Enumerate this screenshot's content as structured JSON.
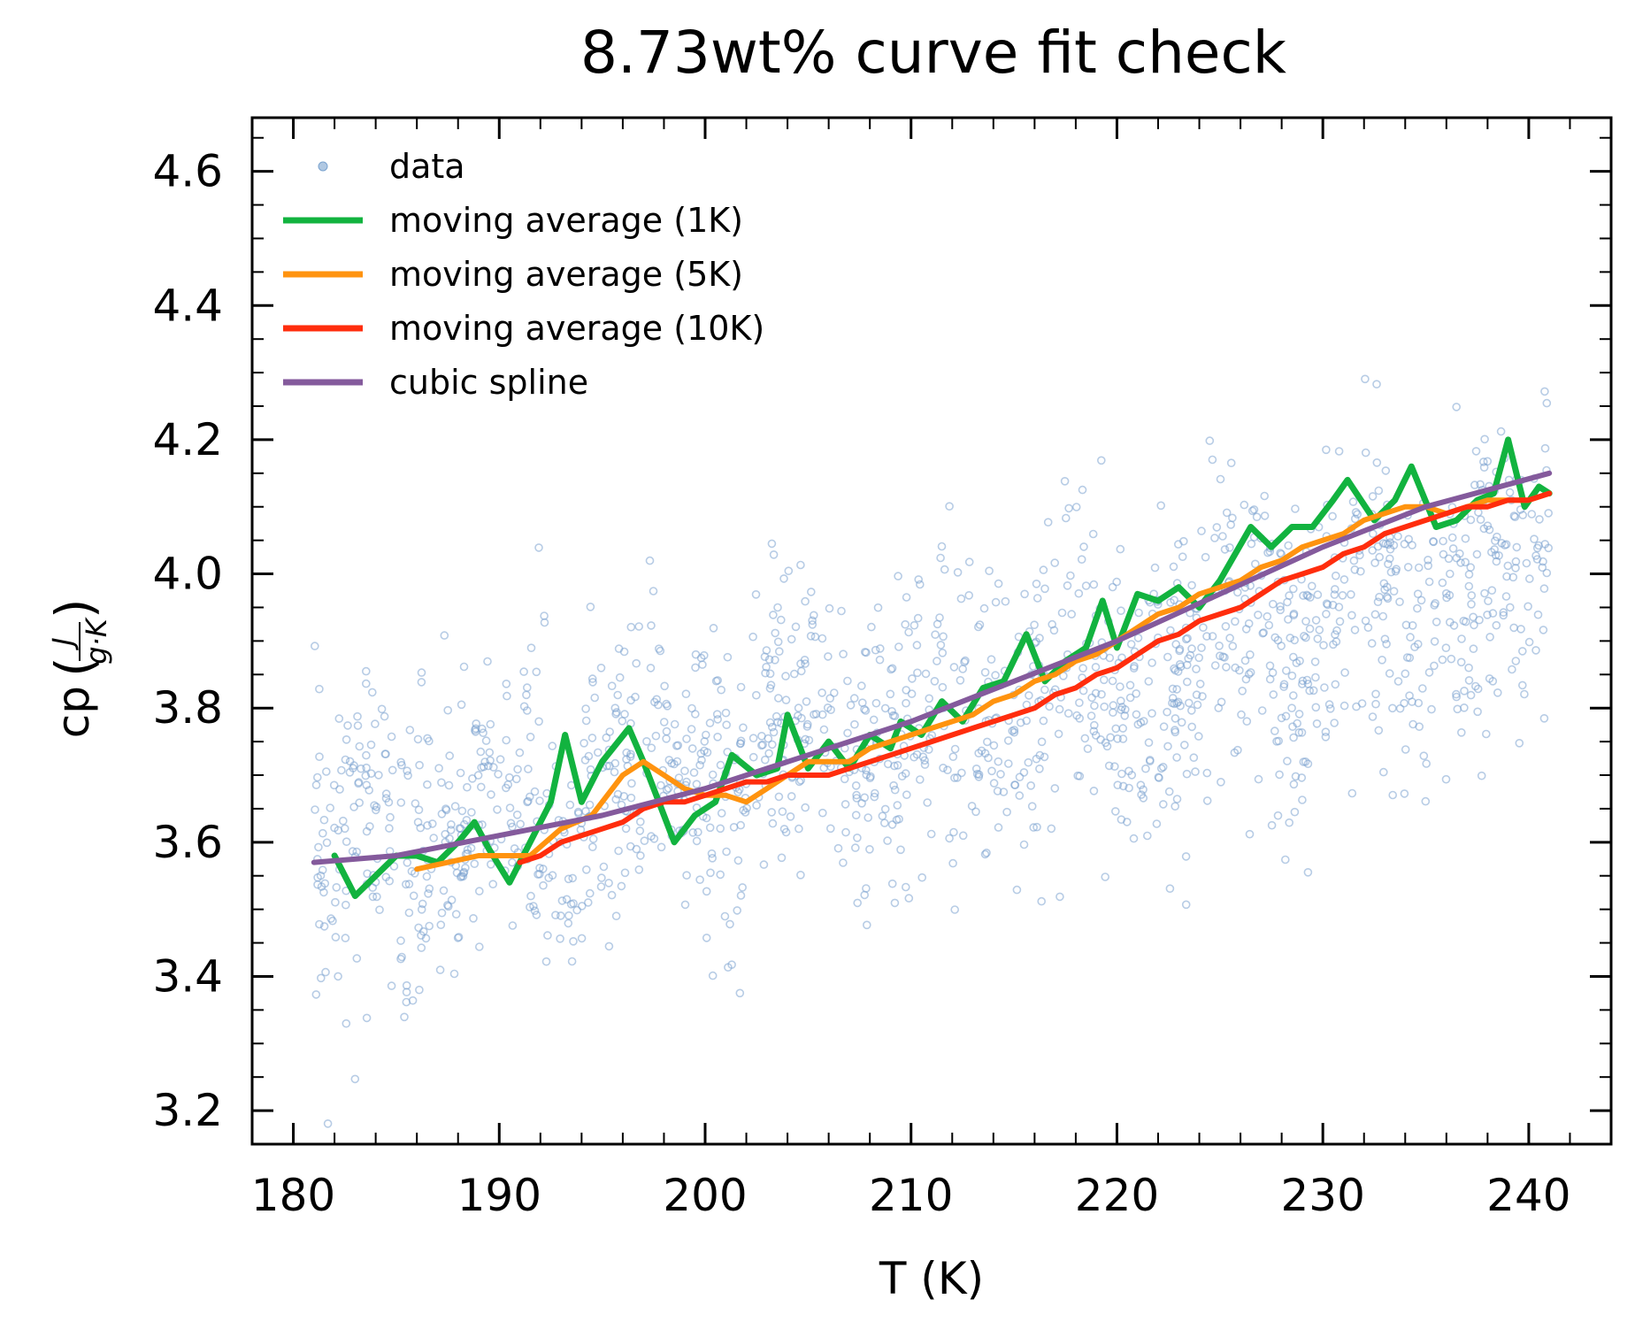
{
  "chart_data": {
    "type": "scatter",
    "title": "8.73wt% curve fit check",
    "xlabel": "T (K)",
    "ylabel": {
      "prefix": "cp",
      "frac_num": "J",
      "frac_den": "g·K"
    },
    "xlim": [
      178,
      244
    ],
    "ylim": [
      3.15,
      4.68
    ],
    "xticks": [
      180,
      190,
      200,
      210,
      220,
      230,
      240
    ],
    "yticks": [
      3.2,
      3.4,
      3.6,
      3.8,
      4.0,
      4.2,
      4.4,
      4.6
    ],
    "xtick_labels": [
      "180",
      "190",
      "200",
      "210",
      "220",
      "230",
      "240"
    ],
    "ytick_labels": [
      "3.2",
      "3.4",
      "3.6",
      "3.8",
      "4.0",
      "4.2",
      "4.4",
      "4.6"
    ],
    "grid": false,
    "legend_position": "upper-left",
    "scatter_note": "about 1,600 semi-transparent small circles scattered around the trend, T range 181 to 241 K",
    "series": [
      {
        "name": "data",
        "kind": "scatter",
        "color": "#7ba3cf",
        "trend": {
          "t_start": 181,
          "t_end": 241,
          "cp_at_start": 3.57,
          "curvature": 3.2e-05,
          "scatter_sd": 0.115,
          "points": 1600
        }
      },
      {
        "name": "moving average (1K)",
        "kind": "line",
        "color": "#12b33f",
        "points": [
          [
            182,
            3.58
          ],
          [
            183,
            3.52
          ],
          [
            184,
            3.55
          ],
          [
            185,
            3.58
          ],
          [
            186,
            3.58
          ],
          [
            187,
            3.57
          ],
          [
            188,
            3.6
          ],
          [
            188.8,
            3.63
          ],
          [
            189.5,
            3.59
          ],
          [
            190.5,
            3.54
          ],
          [
            191.5,
            3.6
          ],
          [
            192.5,
            3.66
          ],
          [
            193.2,
            3.76
          ],
          [
            194,
            3.66
          ],
          [
            195,
            3.72
          ],
          [
            196.3,
            3.77
          ],
          [
            197,
            3.72
          ],
          [
            198,
            3.64
          ],
          [
            198.5,
            3.6
          ],
          [
            199.5,
            3.64
          ],
          [
            200.5,
            3.66
          ],
          [
            201.3,
            3.73
          ],
          [
            202.5,
            3.7
          ],
          [
            203.5,
            3.71
          ],
          [
            204,
            3.79
          ],
          [
            205,
            3.71
          ],
          [
            206,
            3.75
          ],
          [
            207,
            3.71
          ],
          [
            208,
            3.76
          ],
          [
            209,
            3.74
          ],
          [
            209.5,
            3.78
          ],
          [
            210.5,
            3.76
          ],
          [
            211.5,
            3.81
          ],
          [
            212.5,
            3.78
          ],
          [
            213.5,
            3.83
          ],
          [
            214.5,
            3.84
          ],
          [
            215.6,
            3.91
          ],
          [
            216.5,
            3.84
          ],
          [
            217.5,
            3.87
          ],
          [
            218.5,
            3.89
          ],
          [
            219.3,
            3.96
          ],
          [
            220,
            3.89
          ],
          [
            221,
            3.97
          ],
          [
            222,
            3.96
          ],
          [
            223,
            3.98
          ],
          [
            224,
            3.95
          ],
          [
            225,
            3.99
          ],
          [
            226.5,
            4.07
          ],
          [
            227.5,
            4.04
          ],
          [
            228.5,
            4.07
          ],
          [
            229.5,
            4.07
          ],
          [
            230.5,
            4.11
          ],
          [
            231.2,
            4.14
          ],
          [
            232.5,
            4.08
          ],
          [
            233.5,
            4.11
          ],
          [
            234.3,
            4.16
          ],
          [
            235.5,
            4.07
          ],
          [
            236.5,
            4.08
          ],
          [
            237.5,
            4.11
          ],
          [
            238.3,
            4.12
          ],
          [
            239,
            4.2
          ],
          [
            239.8,
            4.1
          ],
          [
            240.5,
            4.13
          ],
          [
            241,
            4.12
          ]
        ]
      },
      {
        "name": "moving average (5K)",
        "kind": "line",
        "color": "#ff930f",
        "points": [
          [
            186,
            3.56
          ],
          [
            187.5,
            3.57
          ],
          [
            189,
            3.58
          ],
          [
            190.5,
            3.58
          ],
          [
            191.5,
            3.58
          ],
          [
            193,
            3.62
          ],
          [
            194.5,
            3.64
          ],
          [
            196,
            3.7
          ],
          [
            197,
            3.72
          ],
          [
            198,
            3.7
          ],
          [
            199,
            3.68
          ],
          [
            200,
            3.67
          ],
          [
            201,
            3.67
          ],
          [
            202,
            3.66
          ],
          [
            203,
            3.68
          ],
          [
            204,
            3.7
          ],
          [
            205,
            3.72
          ],
          [
            206,
            3.72
          ],
          [
            207,
            3.72
          ],
          [
            208,
            3.74
          ],
          [
            209,
            3.75
          ],
          [
            210,
            3.76
          ],
          [
            211,
            3.77
          ],
          [
            212,
            3.78
          ],
          [
            213,
            3.79
          ],
          [
            214,
            3.81
          ],
          [
            215,
            3.82
          ],
          [
            216,
            3.84
          ],
          [
            217,
            3.85
          ],
          [
            218,
            3.87
          ],
          [
            219,
            3.88
          ],
          [
            220,
            3.9
          ],
          [
            221,
            3.92
          ],
          [
            222,
            3.94
          ],
          [
            223,
            3.95
          ],
          [
            224,
            3.97
          ],
          [
            225,
            3.98
          ],
          [
            226,
            3.99
          ],
          [
            227,
            4.01
          ],
          [
            228,
            4.02
          ],
          [
            229,
            4.04
          ],
          [
            230,
            4.05
          ],
          [
            231,
            4.06
          ],
          [
            232,
            4.08
          ],
          [
            233,
            4.09
          ],
          [
            234,
            4.1
          ],
          [
            235,
            4.1
          ],
          [
            236,
            4.09
          ],
          [
            237,
            4.1
          ],
          [
            238,
            4.11
          ],
          [
            239,
            4.11
          ],
          [
            240,
            4.11
          ],
          [
            241,
            4.12
          ]
        ]
      },
      {
        "name": "moving average (10K)",
        "kind": "line",
        "color": "#ff2d0d",
        "points": [
          [
            191,
            3.57
          ],
          [
            192,
            3.58
          ],
          [
            193,
            3.6
          ],
          [
            194,
            3.61
          ],
          [
            195,
            3.62
          ],
          [
            196,
            3.63
          ],
          [
            197,
            3.65
          ],
          [
            198,
            3.66
          ],
          [
            199,
            3.66
          ],
          [
            200,
            3.67
          ],
          [
            201,
            3.68
          ],
          [
            202,
            3.69
          ],
          [
            203,
            3.69
          ],
          [
            204,
            3.7
          ],
          [
            205,
            3.7
          ],
          [
            206,
            3.7
          ],
          [
            207,
            3.71
          ],
          [
            208,
            3.72
          ],
          [
            209,
            3.73
          ],
          [
            210,
            3.74
          ],
          [
            211,
            3.75
          ],
          [
            212,
            3.76
          ],
          [
            213,
            3.77
          ],
          [
            214,
            3.78
          ],
          [
            215,
            3.79
          ],
          [
            216,
            3.8
          ],
          [
            217,
            3.82
          ],
          [
            218,
            3.83
          ],
          [
            219,
            3.85
          ],
          [
            220,
            3.86
          ],
          [
            221,
            3.88
          ],
          [
            222,
            3.9
          ],
          [
            223,
            3.91
          ],
          [
            224,
            3.93
          ],
          [
            225,
            3.94
          ],
          [
            226,
            3.95
          ],
          [
            227,
            3.97
          ],
          [
            228,
            3.99
          ],
          [
            229,
            4.0
          ],
          [
            230,
            4.01
          ],
          [
            231,
            4.03
          ],
          [
            232,
            4.04
          ],
          [
            233,
            4.06
          ],
          [
            234,
            4.07
          ],
          [
            235,
            4.08
          ],
          [
            236,
            4.09
          ],
          [
            237,
            4.1
          ],
          [
            238,
            4.1
          ],
          [
            239,
            4.11
          ],
          [
            240,
            4.11
          ],
          [
            241,
            4.12
          ]
        ]
      },
      {
        "name": "cubic spline",
        "kind": "line",
        "color": "#845a9c",
        "points": [
          [
            181,
            3.57
          ],
          [
            185,
            3.58
          ],
          [
            190,
            3.61
          ],
          [
            195,
            3.64
          ],
          [
            200,
            3.68
          ],
          [
            205,
            3.73
          ],
          [
            210,
            3.78
          ],
          [
            215,
            3.84
          ],
          [
            220,
            3.9
          ],
          [
            225,
            3.97
          ],
          [
            230,
            4.04
          ],
          [
            235,
            4.1
          ],
          [
            241,
            4.15
          ]
        ]
      }
    ]
  }
}
